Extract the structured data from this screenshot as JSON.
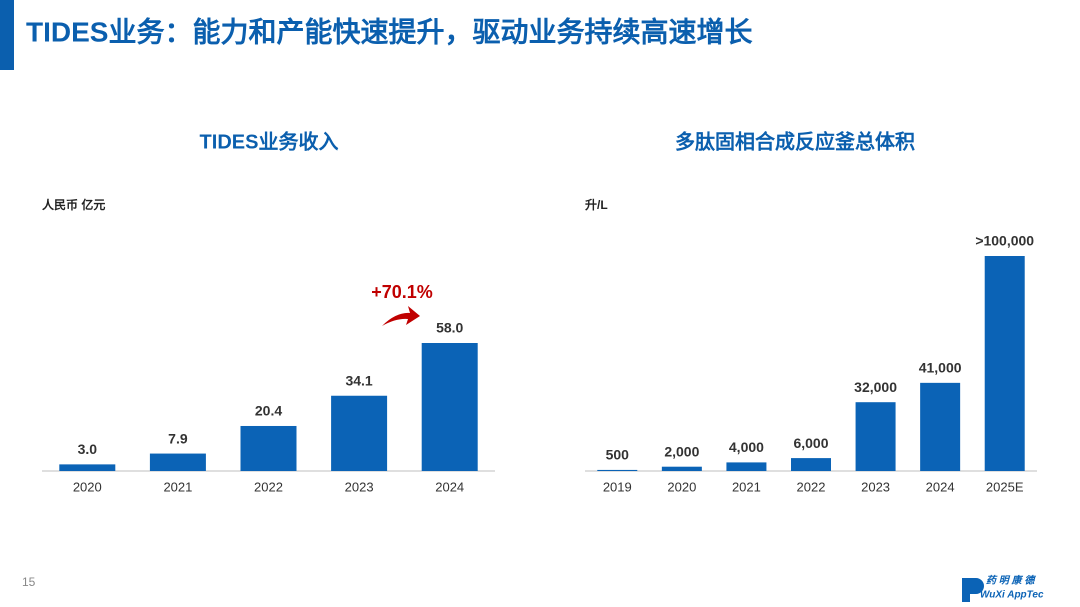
{
  "header": {
    "title": "TIDES业务：能力和产能快速提升，驱动业务持续高速增长"
  },
  "footer": {
    "page_number": "15",
    "logo_cn": "药 明 康 德",
    "logo_en": "WuXi AppTec"
  },
  "chart_data": [
    {
      "type": "bar",
      "title": "TIDES业务收入",
      "unit": "人民币 亿元",
      "color": "#0b63b6",
      "categories": [
        "2020",
        "2021",
        "2022",
        "2023",
        "2024"
      ],
      "values": [
        3.0,
        7.9,
        20.4,
        34.1,
        58.0
      ],
      "value_labels": [
        "3.0",
        "7.9",
        "20.4",
        "34.1",
        "58.0"
      ],
      "annotation": "+70.1%"
    },
    {
      "type": "bar",
      "title": "多肽固相合成反应釜总体积",
      "unit": "升/L",
      "color": "#0b63b6",
      "categories": [
        "2019",
        "2020",
        "2021",
        "2022",
        "2023",
        "2024",
        "2025E"
      ],
      "values": [
        500,
        2000,
        4000,
        6000,
        32000,
        41000,
        100000
      ],
      "value_labels": [
        "500",
        "2,000",
        "4,000",
        "6,000",
        "32,000",
        "41,000",
        ">100,000"
      ]
    }
  ]
}
